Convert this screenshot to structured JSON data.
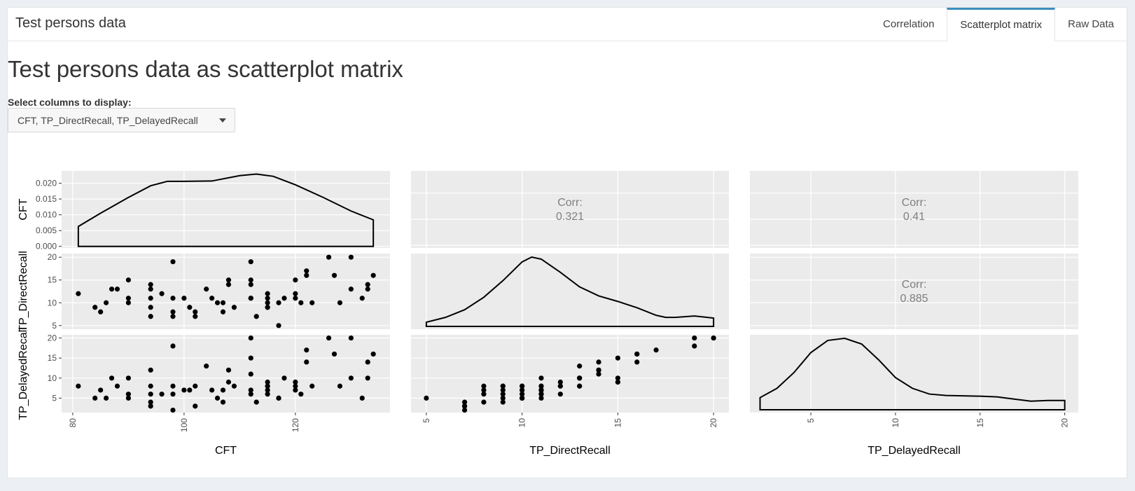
{
  "app": {
    "title": "Test persons data"
  },
  "tabs": [
    {
      "label": "Correlation",
      "active": false
    },
    {
      "label": "Scatterplot matrix",
      "active": true
    },
    {
      "label": "Raw Data",
      "active": false
    }
  ],
  "main": {
    "title": "Test persons data as scatterplot matrix",
    "select_label": "Select columns to display:",
    "select_value": "CFT, TP_DirectRecall, TP_DelayedRecall"
  },
  "colors": {
    "accent": "#3c8dbc",
    "panel_bg": "#ebebeb",
    "grid": "#ffffff",
    "point": "#000000",
    "corr_text": "#7f7f7f"
  },
  "chart_data": {
    "type": "scatter",
    "variables": [
      "CFT",
      "TP_DirectRecall",
      "TP_DelayedRecall"
    ],
    "axis_labels": {
      "x": [
        "CFT",
        "TP_DirectRecall",
        "TP_DelayedRecall"
      ],
      "y": [
        "CFT",
        "TP_DirectRecall",
        "TP_DelayedRecall"
      ]
    },
    "ticks": {
      "CFT": [
        80,
        100,
        120
      ],
      "TP_DirectRecall": [
        5,
        10,
        15,
        20
      ],
      "TP_DelayedRecall": [
        5,
        10,
        15,
        20
      ]
    },
    "tick_labels": {
      "CFT": [
        "80",
        "100",
        "120"
      ],
      "TP_DirectRecall": [
        "5",
        "10",
        "15",
        "20"
      ],
      "TP_DelayedRecall": [
        "5",
        "10",
        "15",
        "20"
      ]
    },
    "ranges": {
      "CFT": [
        78,
        137
      ],
      "TP_DirectRecall": [
        4.2,
        20.8
      ],
      "TP_DelayedRecall": [
        1.4,
        20.8
      ]
    },
    "density": {
      "CFT": {
        "y_ticks": [
          0.0,
          0.005,
          0.01,
          0.015,
          0.02
        ],
        "y_tick_labels": [
          "0.000",
          "0.005",
          "0.010",
          "0.015",
          "0.020"
        ],
        "y_range": [
          -0.0005,
          0.0239
        ],
        "x": [
          81,
          85,
          90,
          94,
          97,
          100,
          105,
          110,
          113,
          116,
          120,
          125,
          130,
          134
        ],
        "y": [
          0.0063,
          0.0105,
          0.0155,
          0.0192,
          0.0206,
          0.0206,
          0.0207,
          0.0224,
          0.0229,
          0.0222,
          0.0195,
          0.0155,
          0.0112,
          0.0084
        ]
      },
      "TP_DirectRecall": {
        "x": [
          5,
          6,
          7,
          8,
          9,
          10,
          10.5,
          11,
          12,
          13,
          14,
          15,
          16,
          17,
          17.5,
          18,
          19,
          20
        ],
        "y": [
          0.06,
          0.13,
          0.24,
          0.42,
          0.66,
          0.93,
          1.0,
          0.97,
          0.78,
          0.57,
          0.44,
          0.36,
          0.27,
          0.16,
          0.13,
          0.13,
          0.15,
          0.12
        ]
      },
      "TP_DelayedRecall": {
        "x": [
          2,
          3,
          4,
          5,
          6,
          7,
          8,
          9,
          10,
          11,
          12,
          13,
          15,
          16,
          17,
          18,
          19,
          20
        ],
        "y": [
          0.17,
          0.3,
          0.52,
          0.8,
          0.97,
          1.0,
          0.92,
          0.7,
          0.45,
          0.3,
          0.22,
          0.2,
          0.19,
          0.18,
          0.15,
          0.12,
          0.13,
          0.13
        ]
      }
    },
    "correlations": [
      {
        "row": 0,
        "col": 1,
        "label": "Corr:",
        "value": "0.321"
      },
      {
        "row": 0,
        "col": 2,
        "label": "Corr:",
        "value": "0.41"
      },
      {
        "row": 1,
        "col": 2,
        "label": "Corr:",
        "value": "0.885"
      }
    ],
    "points": {
      "CFT": [
        81,
        84,
        85,
        86,
        87,
        88,
        90,
        90,
        90,
        94,
        94,
        94,
        94,
        94,
        96,
        98,
        98,
        98,
        98,
        100,
        101,
        102,
        102,
        104,
        105,
        106,
        107,
        107,
        108,
        108,
        109,
        112,
        112,
        112,
        112,
        112,
        113,
        115,
        115,
        115,
        115,
        115,
        117,
        117,
        118,
        120,
        120,
        120,
        121,
        122,
        122,
        123,
        126,
        127,
        128,
        130,
        130,
        132,
        133,
        133,
        134
      ],
      "TP_DirectRecall": [
        12,
        9,
        8,
        10,
        13,
        13,
        15,
        11,
        10,
        14,
        13,
        11,
        9,
        7,
        12,
        19,
        11,
        8,
        7,
        11,
        9,
        8,
        7,
        13,
        11,
        10,
        10,
        8,
        14,
        15,
        9,
        19,
        15,
        14,
        11,
        11,
        7,
        12,
        11,
        10,
        9,
        9,
        10,
        5,
        11,
        15,
        12,
        11,
        10,
        16,
        17,
        10,
        20,
        16,
        10,
        20,
        13,
        11,
        14,
        13,
        16
      ],
      "TP_DelayedRecall": [
        8,
        5,
        7,
        5,
        10,
        8,
        10,
        6,
        5,
        12,
        8,
        6,
        4,
        3,
        6,
        18,
        8,
        6,
        2,
        7,
        7,
        8,
        3,
        13,
        7,
        5,
        7,
        4,
        12,
        9,
        8,
        20,
        15,
        11,
        7,
        6,
        4,
        9,
        8,
        7,
        6,
        8,
        5,
        5,
        10,
        9,
        8,
        7,
        6,
        14,
        17,
        8,
        20,
        16,
        8,
        20,
        10,
        5,
        14,
        10,
        16
      ]
    }
  }
}
